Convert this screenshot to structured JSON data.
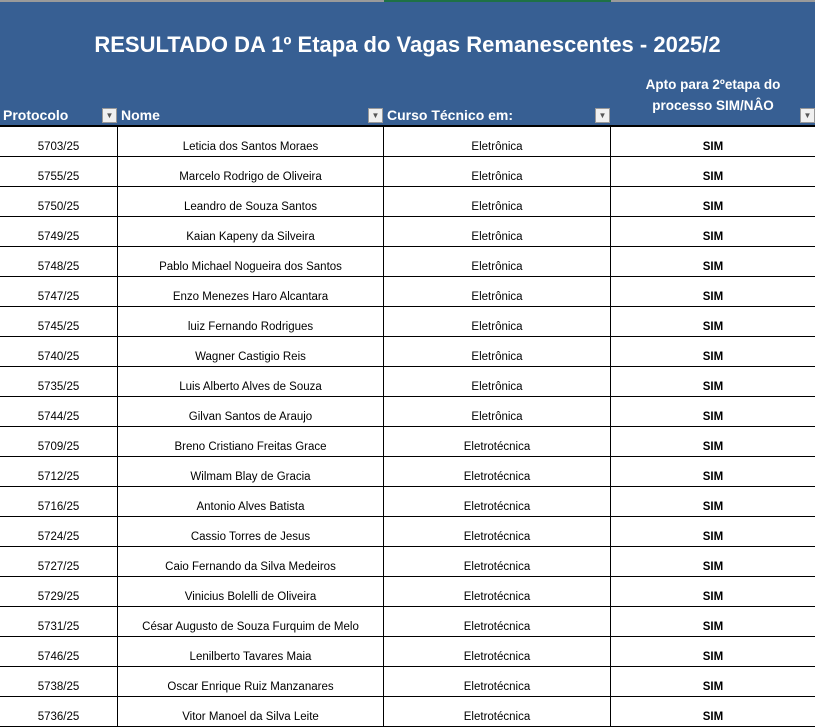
{
  "title": "RESULTADO DA 1º Etapa do Vagas Remanescentes - 2025/2",
  "columns": {
    "protocolo": "Protocolo",
    "nome": "Nome",
    "curso": "Curso  Técnico em:",
    "apto_line1": "Apto para 2ºetapa do",
    "apto_line2": "processo SIM/NÂO"
  },
  "rows": [
    [
      "5703/25",
      "Leticia dos Santos Moraes",
      "Eletrônica",
      "SIM"
    ],
    [
      "5755/25",
      "Marcelo Rodrigo de Oliveira",
      "Eletrônica",
      "SIM"
    ],
    [
      "5750/25",
      "Leandro de Souza Santos",
      "Eletrônica",
      "SIM"
    ],
    [
      "5749/25",
      "Kaian Kapeny da Silveira",
      "Eletrônica",
      "SIM"
    ],
    [
      "5748/25",
      "Pablo Michael Nogueira dos Santos",
      "Eletrônica",
      "SIM"
    ],
    [
      "5747/25",
      "Enzo Menezes Haro Alcantara",
      "Eletrônica",
      "SIM"
    ],
    [
      "5745/25",
      "luiz Fernando Rodrigues",
      "Eletrônica",
      "SIM"
    ],
    [
      "5740/25",
      "Wagner Castigio Reis",
      "Eletrônica",
      "SIM"
    ],
    [
      "5735/25",
      "Luis Alberto Alves de Souza",
      "Eletrônica",
      "SIM"
    ],
    [
      "5744/25",
      "Gilvan Santos de Araujo",
      "Eletrônica",
      "SIM"
    ],
    [
      "5709/25",
      "Breno Cristiano Freitas Grace",
      "Eletrotécnica",
      "SIM"
    ],
    [
      "5712/25",
      "Wilmam Blay de Gracia",
      "Eletrotécnica",
      "SIM"
    ],
    [
      "5716/25",
      "Antonio Alves Batista",
      "Eletrotécnica",
      "SIM"
    ],
    [
      "5724/25",
      "Cassio Torres de Jesus",
      "Eletrotécnica",
      "SIM"
    ],
    [
      "5727/25",
      "Caio Fernando da Silva Medeiros",
      "Eletrotécnica",
      "SIM"
    ],
    [
      "5729/25",
      "Vinicius Bolelli de Oliveira",
      "Eletrotécnica",
      "SIM"
    ],
    [
      "5731/25",
      "César Augusto de Souza Furquim de Melo",
      "Eletrotécnica",
      "SIM"
    ],
    [
      "5746/25",
      "Lenilberto Tavares Maia",
      "Eletrotécnica",
      "SIM"
    ],
    [
      "5738/25",
      "Oscar Enrique Ruiz Manzanares",
      "Eletrotécnica",
      "SIM"
    ],
    [
      "5736/25",
      "Vitor Manoel da Silva Leite",
      "Eletrotécnica",
      "SIM"
    ]
  ],
  "colors": {
    "header_bg": "#375f93",
    "header_text": "#ffffff"
  }
}
